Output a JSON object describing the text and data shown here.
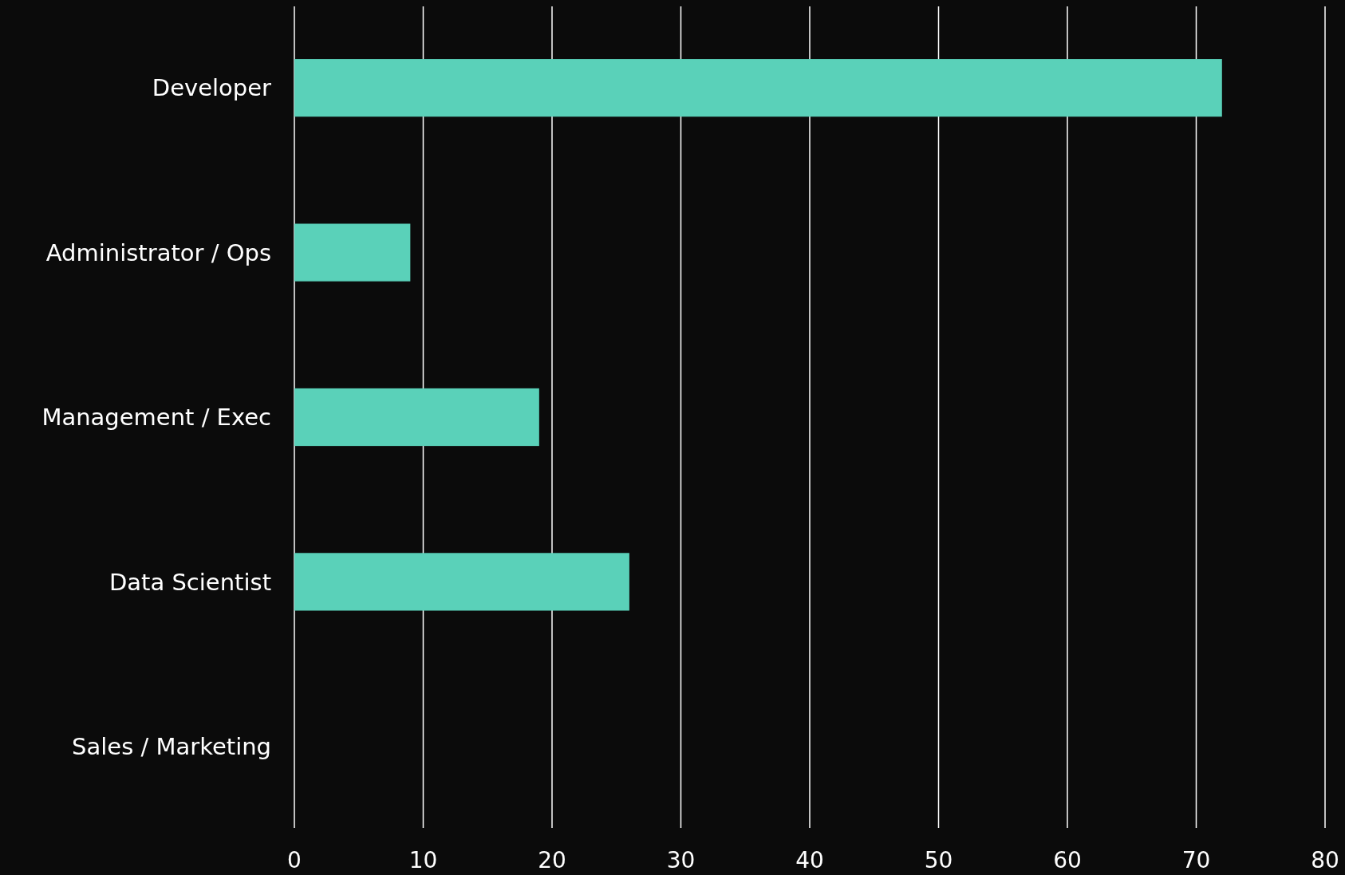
{
  "chart_data": {
    "type": "bar",
    "orientation": "horizontal",
    "categories": [
      "Developer",
      "Administrator / Ops",
      "Management / Exec",
      "Data Scientist",
      "Sales / Marketing"
    ],
    "values": [
      72,
      9,
      19,
      26,
      0
    ],
    "color": "#5ad1b9",
    "xlim": [
      0,
      80
    ],
    "xticks": [
      0,
      10,
      20,
      30,
      40,
      50,
      60,
      70,
      80
    ],
    "grid": "x"
  }
}
